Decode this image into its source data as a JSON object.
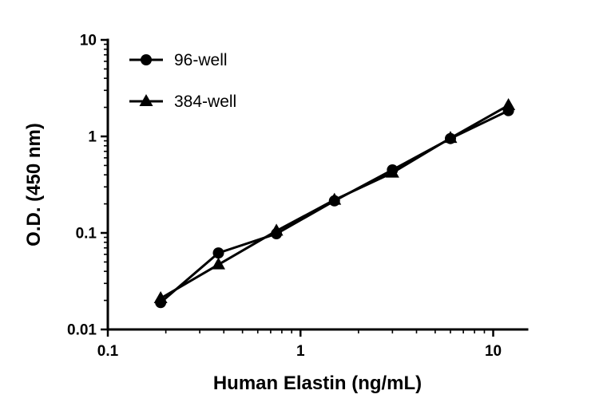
{
  "chart_data": {
    "type": "line",
    "x_scale": "log",
    "y_scale": "log",
    "xlabel": "Human Elastin (ng/mL)",
    "ylabel": "O.D. (450 nm)",
    "xlim": [
      0.1,
      15
    ],
    "ylim": [
      0.01,
      10
    ],
    "x_major_ticks": {
      "values": [
        0.1,
        1,
        10
      ],
      "labels": [
        "0.1",
        "1",
        "10"
      ]
    },
    "y_major_ticks": {
      "values": [
        0.01,
        0.1,
        1,
        10
      ],
      "labels": [
        "0.01",
        "0.1",
        "1",
        "10"
      ]
    },
    "grid": false,
    "line_color": "#000000",
    "background_color": "#ffffff",
    "x": [
      0.188,
      0.375,
      0.75,
      1.5,
      3,
      6,
      12
    ],
    "series": [
      {
        "name": "96-well",
        "marker": "circle",
        "color": "#000000",
        "values": [
          0.019,
          0.062,
          0.098,
          0.215,
          0.45,
          0.95,
          1.85
        ]
      },
      {
        "name": "384-well",
        "marker": "triangle",
        "color": "#000000",
        "values": [
          0.021,
          0.047,
          0.105,
          0.22,
          0.42,
          0.96,
          2.1
        ]
      }
    ],
    "legend": {
      "position": "top-left-inside",
      "entries": [
        "96-well",
        "384-well"
      ]
    }
  }
}
